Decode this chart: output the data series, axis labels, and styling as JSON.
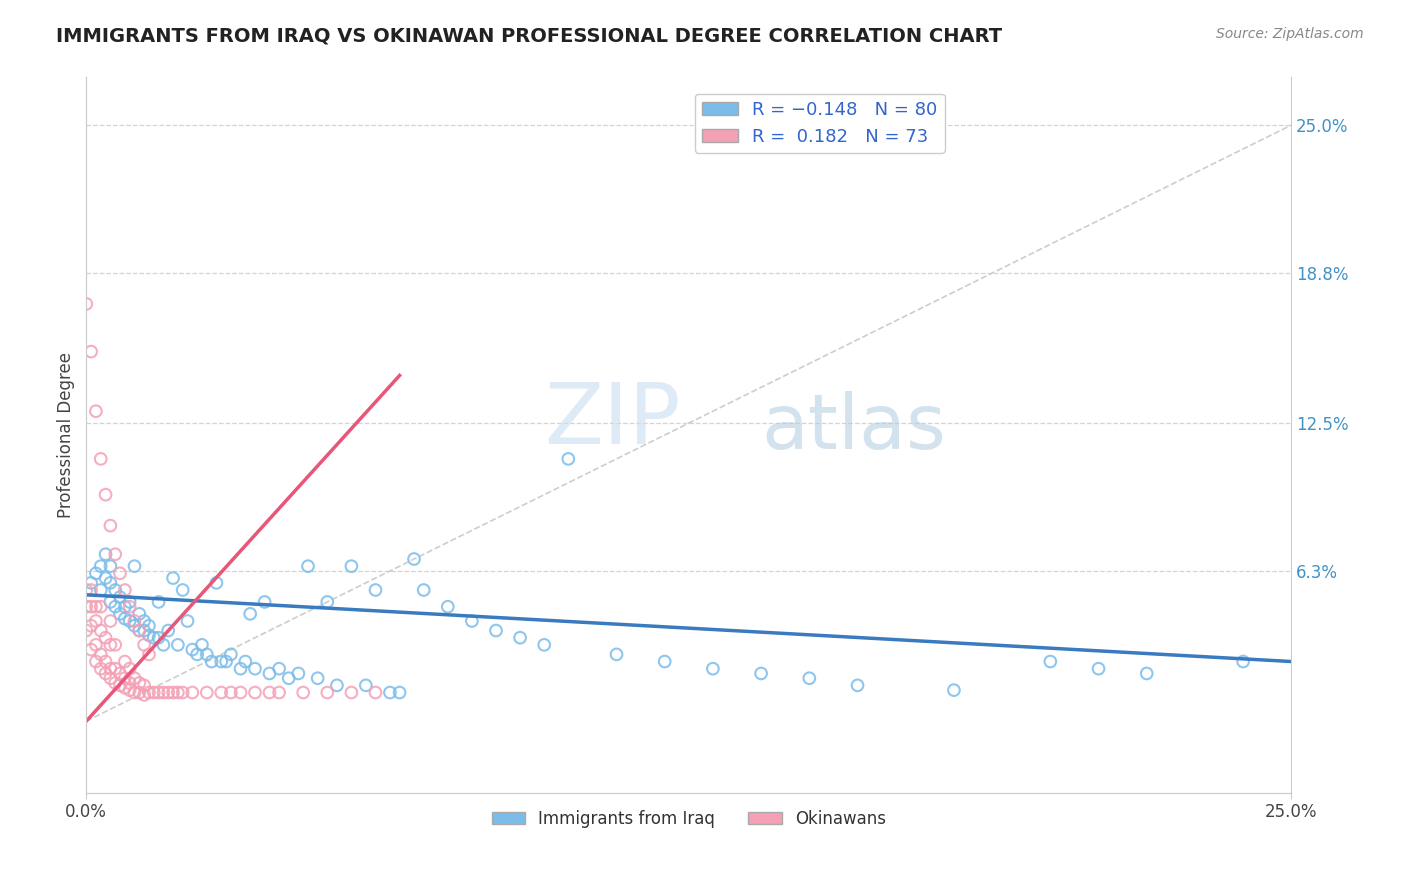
{
  "title": "IMMIGRANTS FROM IRAQ VS OKINAWAN PROFESSIONAL DEGREE CORRELATION CHART",
  "source": "Source: ZipAtlas.com",
  "ylabel": "Professional Degree",
  "right_yticks": [
    "25.0%",
    "18.8%",
    "12.5%",
    "6.3%"
  ],
  "right_ytick_vals": [
    0.25,
    0.188,
    0.125,
    0.063
  ],
  "xmin": 0.0,
  "xmax": 0.25,
  "ymin": -0.03,
  "ymax": 0.27,
  "blue_color": "#7abcea",
  "pink_color": "#f4a0b5",
  "blue_line_color": "#3a7bbf",
  "pink_line_color": "#e8567a",
  "watermark_zip": "ZIP",
  "watermark_atlas": "atlas",
  "iraq_x": [
    0.001,
    0.002,
    0.003,
    0.003,
    0.004,
    0.004,
    0.005,
    0.005,
    0.005,
    0.006,
    0.006,
    0.007,
    0.007,
    0.008,
    0.008,
    0.009,
    0.009,
    0.01,
    0.01,
    0.011,
    0.011,
    0.012,
    0.012,
    0.013,
    0.013,
    0.014,
    0.015,
    0.015,
    0.016,
    0.017,
    0.018,
    0.019,
    0.02,
    0.021,
    0.022,
    0.023,
    0.024,
    0.025,
    0.026,
    0.027,
    0.028,
    0.029,
    0.03,
    0.032,
    0.033,
    0.034,
    0.035,
    0.037,
    0.038,
    0.04,
    0.042,
    0.044,
    0.046,
    0.048,
    0.05,
    0.052,
    0.055,
    0.058,
    0.06,
    0.063,
    0.065,
    0.068,
    0.07,
    0.075,
    0.08,
    0.085,
    0.09,
    0.095,
    0.1,
    0.11,
    0.12,
    0.13,
    0.14,
    0.15,
    0.16,
    0.18,
    0.2,
    0.21,
    0.22,
    0.24
  ],
  "iraq_y": [
    0.058,
    0.062,
    0.055,
    0.065,
    0.06,
    0.07,
    0.05,
    0.058,
    0.065,
    0.048,
    0.055,
    0.045,
    0.052,
    0.043,
    0.048,
    0.042,
    0.05,
    0.04,
    0.065,
    0.038,
    0.045,
    0.038,
    0.042,
    0.036,
    0.04,
    0.035,
    0.05,
    0.035,
    0.032,
    0.038,
    0.06,
    0.032,
    0.055,
    0.042,
    0.03,
    0.028,
    0.032,
    0.028,
    0.025,
    0.058,
    0.025,
    0.025,
    0.028,
    0.022,
    0.025,
    0.045,
    0.022,
    0.05,
    0.02,
    0.022,
    0.018,
    0.02,
    0.065,
    0.018,
    0.05,
    0.015,
    0.065,
    0.015,
    0.055,
    0.012,
    0.012,
    0.068,
    0.055,
    0.048,
    0.042,
    0.038,
    0.035,
    0.032,
    0.11,
    0.028,
    0.025,
    0.022,
    0.02,
    0.018,
    0.015,
    0.013,
    0.025,
    0.022,
    0.02,
    0.025
  ],
  "okin_x": [
    0.0,
    0.0,
    0.0,
    0.001,
    0.001,
    0.001,
    0.001,
    0.002,
    0.002,
    0.002,
    0.002,
    0.003,
    0.003,
    0.003,
    0.003,
    0.004,
    0.004,
    0.004,
    0.005,
    0.005,
    0.005,
    0.005,
    0.006,
    0.006,
    0.006,
    0.007,
    0.007,
    0.008,
    0.008,
    0.008,
    0.009,
    0.009,
    0.009,
    0.01,
    0.01,
    0.011,
    0.011,
    0.012,
    0.012,
    0.013,
    0.014,
    0.015,
    0.016,
    0.017,
    0.018,
    0.019,
    0.02,
    0.022,
    0.025,
    0.028,
    0.03,
    0.032,
    0.035,
    0.038,
    0.04,
    0.045,
    0.05,
    0.055,
    0.06,
    0.0,
    0.001,
    0.002,
    0.003,
    0.004,
    0.005,
    0.006,
    0.007,
    0.008,
    0.009,
    0.01,
    0.011,
    0.012,
    0.013
  ],
  "okin_y": [
    0.038,
    0.048,
    0.055,
    0.03,
    0.04,
    0.048,
    0.055,
    0.025,
    0.032,
    0.042,
    0.048,
    0.022,
    0.028,
    0.038,
    0.048,
    0.02,
    0.025,
    0.035,
    0.018,
    0.022,
    0.032,
    0.042,
    0.016,
    0.022,
    0.032,
    0.015,
    0.02,
    0.014,
    0.018,
    0.025,
    0.013,
    0.016,
    0.022,
    0.012,
    0.018,
    0.012,
    0.016,
    0.011,
    0.015,
    0.012,
    0.012,
    0.012,
    0.012,
    0.012,
    0.012,
    0.012,
    0.012,
    0.012,
    0.012,
    0.012,
    0.012,
    0.012,
    0.012,
    0.012,
    0.012,
    0.012,
    0.012,
    0.012,
    0.012,
    0.175,
    0.155,
    0.13,
    0.11,
    0.095,
    0.082,
    0.07,
    0.062,
    0.055,
    0.048,
    0.042,
    0.038,
    0.032,
    0.028
  ],
  "pink_line_x": [
    0.0,
    0.065
  ],
  "pink_line_y": [
    0.0,
    0.145
  ],
  "blue_line_x": [
    0.0,
    0.25
  ],
  "blue_line_y": [
    0.053,
    0.025
  ]
}
